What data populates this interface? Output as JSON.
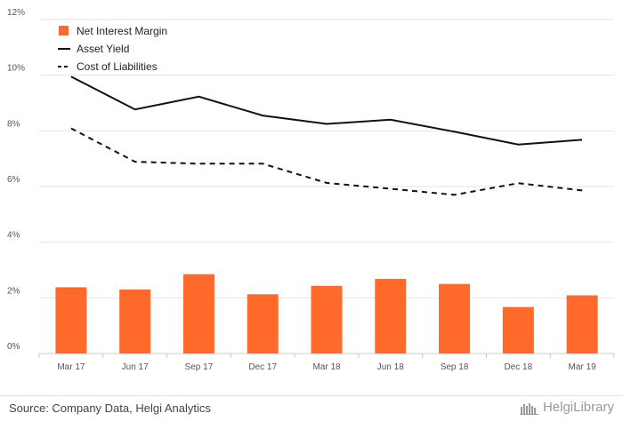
{
  "chart_data": {
    "type": "bar+line",
    "categories": [
      "Mar 17",
      "Jun 17",
      "Sep 17",
      "Dec 17",
      "Mar 18",
      "Jun 18",
      "Sep 18",
      "Dec 18",
      "Mar 19"
    ],
    "series": [
      {
        "name": "Net Interest Margin",
        "kind": "bar",
        "color": "#ff6a2b",
        "values": [
          2.38,
          2.3,
          2.85,
          2.13,
          2.43,
          2.68,
          2.5,
          1.67,
          2.09
        ]
      },
      {
        "name": "Asset Yield",
        "kind": "line",
        "style": "solid",
        "color": "#111111",
        "values": [
          9.95,
          8.77,
          9.23,
          8.55,
          8.25,
          8.4,
          7.97,
          7.51,
          7.68
        ]
      },
      {
        "name": "Cost of Liabilities",
        "kind": "line",
        "style": "dashed",
        "color": "#111111",
        "values": [
          8.09,
          6.89,
          6.82,
          6.82,
          6.13,
          5.92,
          5.7,
          6.12,
          5.86
        ]
      }
    ],
    "ylim": [
      0,
      12
    ],
    "yticks": [
      0,
      2,
      4,
      6,
      8,
      10,
      12
    ],
    "ytick_labels": [
      "0%",
      "2%",
      "4%",
      "6%",
      "8%",
      "10%",
      "12%"
    ],
    "grid": true,
    "legend_position": "top-left"
  },
  "footer": {
    "source": "Source: Company Data, Helgi Analytics",
    "brand": "HelgiLibrary"
  }
}
